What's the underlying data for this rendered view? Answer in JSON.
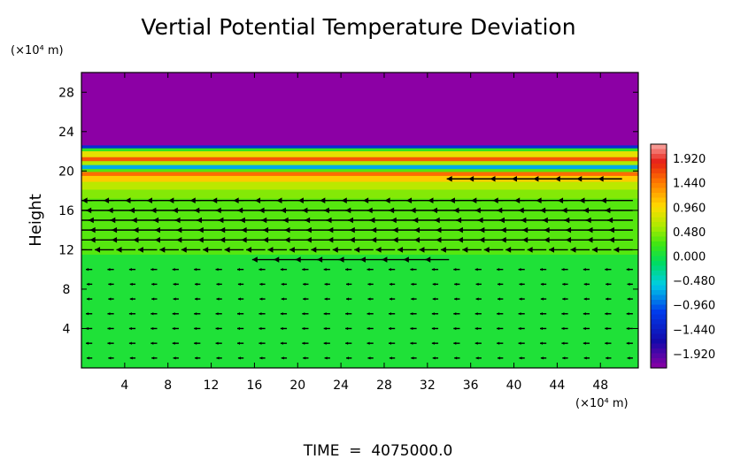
{
  "chart_data": {
    "type": "heatmap",
    "title": "Vertial Potential Temperature Deviation",
    "ylabel": "Height",
    "y_units": "(×10⁴ m)",
    "x_units": "(×10⁴ m)",
    "footer": "TIME  =  4075000.0",
    "xlim": [
      0,
      51.5
    ],
    "ylim": [
      0,
      30
    ],
    "x_ticks": [
      "4",
      "8",
      "12",
      "16",
      "20",
      "24",
      "28",
      "32",
      "36",
      "40",
      "44",
      "48"
    ],
    "x_tick_values": [
      4,
      8,
      12,
      16,
      20,
      24,
      28,
      32,
      36,
      40,
      44,
      48
    ],
    "y_ticks": [
      "4",
      "8",
      "12",
      "16",
      "20",
      "24",
      "28"
    ],
    "y_tick_values": [
      4,
      8,
      12,
      16,
      20,
      24,
      28
    ],
    "colorbar": {
      "min": -2.2,
      "max": 2.2,
      "labels": [
        "1.920",
        "1.440",
        "0.960",
        "0.480",
        "0.000",
        "−0.480",
        "−0.960",
        "−1.440",
        "−1.920"
      ],
      "values": [
        1.92,
        1.44,
        0.96,
        0.48,
        0.0,
        -0.48,
        -0.96,
        -1.44,
        -1.92
      ]
    },
    "field_bands": [
      {
        "y0": 22.6,
        "y1": 30.0,
        "value": -2.2
      },
      {
        "y0": 22.3,
        "y1": 22.6,
        "value": -1.3
      },
      {
        "y0": 22.0,
        "y1": 22.3,
        "value": 0.15
      },
      {
        "y0": 21.4,
        "y1": 22.0,
        "value": 0.85
      },
      {
        "y0": 21.0,
        "y1": 21.4,
        "value": 1.6
      },
      {
        "y0": 20.6,
        "y1": 21.0,
        "value": 0.6
      },
      {
        "y0": 20.2,
        "y1": 20.6,
        "value": -0.7
      },
      {
        "y0": 19.9,
        "y1": 20.2,
        "value": 0.3
      },
      {
        "y0": 19.5,
        "y1": 19.9,
        "value": 1.5
      },
      {
        "y0": 18.9,
        "y1": 19.5,
        "value": 1.05
      },
      {
        "y0": 18.1,
        "y1": 18.9,
        "value": 0.65
      },
      {
        "y0": 17.2,
        "y1": 18.1,
        "value": 0.45
      },
      {
        "y0": 11.5,
        "y1": 17.2,
        "value": 0.3
      },
      {
        "y0": 0.0,
        "y1": 11.5,
        "value": 0.05
      }
    ],
    "wind_rows": [
      {
        "y": 19.2,
        "u": -3.0,
        "x_from": 36
      },
      {
        "y": 17.0,
        "u": -4.0
      },
      {
        "y": 16.0,
        "u": -3.5
      },
      {
        "y": 15.0,
        "u": -3.2
      },
      {
        "y": 14.0,
        "u": -3.0
      },
      {
        "y": 13.0,
        "u": -3.0
      },
      {
        "y": 12.0,
        "u": -2.4
      },
      {
        "y": 11.0,
        "u": -3.0,
        "x_from": 18,
        "x_to": 34
      },
      {
        "y": 10.0,
        "u": -0.8
      },
      {
        "y": 8.5,
        "u": -0.7
      },
      {
        "y": 7.0,
        "u": -0.7
      },
      {
        "y": 5.5,
        "u": -0.8
      },
      {
        "y": 4.0,
        "u": -0.8
      },
      {
        "y": 2.5,
        "u": -0.8
      },
      {
        "y": 1.0,
        "u": -0.7
      }
    ]
  }
}
